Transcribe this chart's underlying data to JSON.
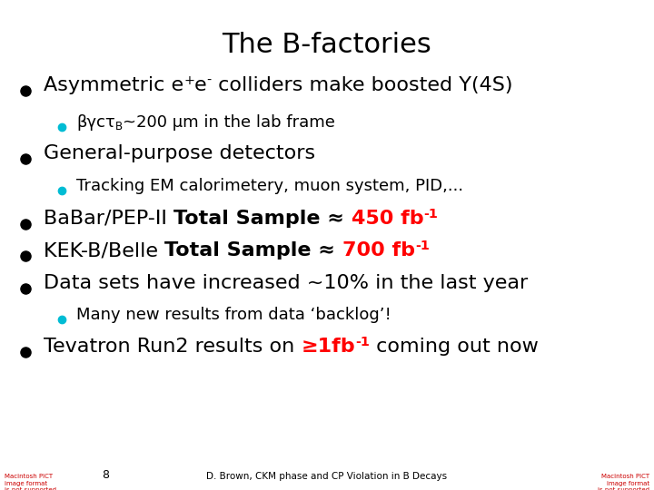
{
  "title": "The B-factories",
  "title_fontsize": 22,
  "background_color": "#ffffff",
  "text_color": "#000000",
  "bullet_color_large": "#000000",
  "bullet_color_small": "#00bcd4",
  "red_color": "#ff0000",
  "footer_left": "Macintosh PICT\nimage format\nis not supported",
  "footer_center_num": "8",
  "footer_center_text": "D. Brown, CKM phase and CP Violation in B Decays",
  "footer_right": "Macintosh PICT\nimage format\nis not supported",
  "lines": [
    {
      "level": 1,
      "parts": [
        {
          "text": "Asymmetric e",
          "style": "normal"
        },
        {
          "text": "+",
          "style": "superscript"
        },
        {
          "text": "e",
          "style": "normal"
        },
        {
          "text": "-",
          "style": "superscript"
        },
        {
          "text": " colliders make boosted Υ(4S)",
          "style": "normal"
        }
      ],
      "fontsize": 16
    },
    {
      "level": 2,
      "parts": [
        {
          "text": "βγcτ",
          "style": "normal"
        },
        {
          "text": "B",
          "style": "subscript"
        },
        {
          "text": "~200 μm in the lab frame",
          "style": "normal"
        }
      ],
      "fontsize": 13
    },
    {
      "level": 1,
      "parts": [
        {
          "text": "General-purpose detectors",
          "style": "normal"
        }
      ],
      "fontsize": 16
    },
    {
      "level": 2,
      "parts": [
        {
          "text": "Tracking EM calorimetery, muon system, PID,...",
          "style": "normal"
        }
      ],
      "fontsize": 13
    },
    {
      "level": 1,
      "parts": [
        {
          "text": "BaBar/PEP-II ",
          "style": "normal"
        },
        {
          "text": "Total Sample ≈ ",
          "style": "bold"
        },
        {
          "text": "450 fb",
          "style": "bold_red"
        },
        {
          "text": "-1",
          "style": "bold_red_super"
        }
      ],
      "fontsize": 16
    },
    {
      "level": 1,
      "parts": [
        {
          "text": "KEK-B/Belle ",
          "style": "normal"
        },
        {
          "text": "Total Sample ≈ ",
          "style": "bold"
        },
        {
          "text": "700 fb",
          "style": "bold_red"
        },
        {
          "text": "-1",
          "style": "bold_red_super"
        }
      ],
      "fontsize": 16
    },
    {
      "level": 1,
      "parts": [
        {
          "text": "Data sets have increased ~10% in the last year",
          "style": "normal"
        }
      ],
      "fontsize": 16
    },
    {
      "level": 2,
      "parts": [
        {
          "text": "Many new results from data ‘backlog’!",
          "style": "normal"
        }
      ],
      "fontsize": 13
    },
    {
      "level": 1,
      "parts": [
        {
          "text": "Tevatron Run2 results on ",
          "style": "normal"
        },
        {
          "text": "≥1fb",
          "style": "bold_red"
        },
        {
          "text": "-1",
          "style": "bold_red_super"
        },
        {
          "text": " coming out now",
          "style": "normal"
        }
      ],
      "fontsize": 16
    }
  ]
}
